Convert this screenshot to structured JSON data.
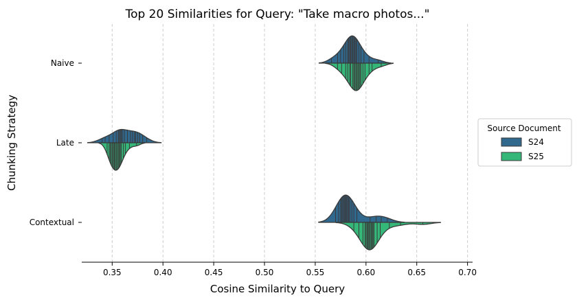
{
  "chart_data": {
    "type": "violin",
    "orientation": "horizontal",
    "split": true,
    "inner": "stick",
    "title": "Top 20 Similarities for Query: \"Take macro photos...\"",
    "xlabel": "Cosine Similarity to Query",
    "ylabel": "Chunking Strategy",
    "xlim": [
      0.32,
      0.705
    ],
    "xticks": [
      0.35,
      0.4,
      0.45,
      0.5,
      0.55,
      0.6,
      0.65,
      0.7
    ],
    "xtick_labels": [
      "0.35",
      "0.40",
      "0.45",
      "0.50",
      "0.55",
      "0.60",
      "0.65",
      "0.70"
    ],
    "grid": "x-dashed",
    "categories": [
      "Naive",
      "Late",
      "Contextual"
    ],
    "legend": {
      "title": "Source Document",
      "placement": "right",
      "entries": [
        "S24",
        "S25"
      ]
    },
    "series": [
      {
        "name": "S24",
        "color": "#31688e",
        "values": {
          "Naive": [
            0.566,
            0.572,
            0.575,
            0.578,
            0.58,
            0.582,
            0.583,
            0.584,
            0.585,
            0.586,
            0.587,
            0.588,
            0.589,
            0.59,
            0.591,
            0.593,
            0.595,
            0.598,
            0.603,
            0.612
          ],
          "Late": [
            0.34,
            0.343,
            0.347,
            0.351,
            0.354,
            0.356,
            0.357,
            0.358,
            0.359,
            0.36,
            0.362,
            0.365,
            0.368,
            0.37,
            0.372,
            0.373,
            0.375,
            0.377,
            0.38,
            0.384
          ],
          "Contextual": [
            0.57,
            0.573,
            0.575,
            0.576,
            0.577,
            0.578,
            0.579,
            0.58,
            0.58,
            0.581,
            0.582,
            0.583,
            0.584,
            0.586,
            0.588,
            0.591,
            0.604,
            0.61,
            0.615,
            0.621
          ]
        }
      },
      {
        "name": "S25",
        "color": "#35b779",
        "values": {
          "Naive": [
            0.572,
            0.576,
            0.58,
            0.582,
            0.584,
            0.585,
            0.587,
            0.588,
            0.589,
            0.59,
            0.591,
            0.592,
            0.593,
            0.594,
            0.595,
            0.597,
            0.599,
            0.603,
            0.606,
            0.615
          ],
          "Late": [
            0.345,
            0.347,
            0.348,
            0.349,
            0.35,
            0.351,
            0.352,
            0.352,
            0.353,
            0.354,
            0.355,
            0.356,
            0.357,
            0.357,
            0.358,
            0.359,
            0.361,
            0.363,
            0.367,
            0.374
          ],
          "Contextual": [
            0.588,
            0.593,
            0.597,
            0.599,
            0.6,
            0.601,
            0.602,
            0.602,
            0.603,
            0.604,
            0.605,
            0.606,
            0.606,
            0.607,
            0.608,
            0.611,
            0.614,
            0.623,
            0.634,
            0.656
          ]
        }
      }
    ]
  }
}
